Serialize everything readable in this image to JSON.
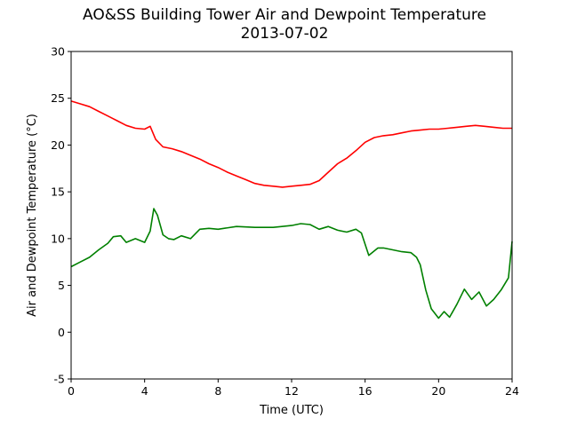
{
  "chart_data": {
    "type": "line",
    "title": "AO&SS Building Tower Air and Dewpoint Temperature",
    "subtitle": "2013-07-02",
    "xlabel": "Time (UTC)",
    "ylabel": "Air and Dewpoint Temperature (°C)",
    "xlim": [
      0,
      24
    ],
    "ylim": [
      -5,
      30
    ],
    "xticks": [
      0,
      4,
      8,
      12,
      16,
      20,
      24
    ],
    "yticks": [
      -5,
      0,
      5,
      10,
      15,
      20,
      25,
      30
    ],
    "grid": false,
    "legend": "none",
    "series": [
      {
        "color": "#ff0000",
        "x": [
          0,
          0.5,
          1,
          1.5,
          2,
          2.5,
          3,
          3.5,
          4,
          4.3,
          4.6,
          5,
          5.5,
          6,
          6.5,
          7,
          7.5,
          8,
          8.5,
          9,
          9.5,
          10,
          10.5,
          11,
          11.5,
          12,
          12.5,
          13,
          13.5,
          14,
          14.5,
          15,
          15.5,
          16,
          16.5,
          17,
          17.5,
          18,
          18.5,
          19,
          19.5,
          20,
          20.5,
          21,
          21.5,
          22,
          22.5,
          23,
          23.5,
          24
        ],
        "y": [
          24.7,
          24.4,
          24.1,
          23.6,
          23.1,
          22.6,
          22.1,
          21.8,
          21.7,
          22.0,
          20.6,
          19.8,
          19.6,
          19.3,
          18.9,
          18.5,
          18.0,
          17.6,
          17.1,
          16.7,
          16.3,
          15.9,
          15.7,
          15.6,
          15.5,
          15.6,
          15.7,
          15.8,
          16.2,
          17.1,
          18.0,
          18.6,
          19.4,
          20.3,
          20.8,
          21.0,
          21.1,
          21.3,
          21.5,
          21.6,
          21.7,
          21.7,
          21.8,
          21.9,
          22.0,
          22.1,
          22.0,
          21.9,
          21.8,
          21.8
        ]
      },
      {
        "color": "#008000",
        "x": [
          0,
          0.5,
          1,
          1.5,
          2,
          2.3,
          2.7,
          3,
          3.5,
          4,
          4.3,
          4.5,
          4.7,
          5,
          5.3,
          5.6,
          6,
          6.5,
          7,
          7.5,
          8,
          9,
          10,
          11,
          12,
          12.5,
          13,
          13.5,
          14,
          14.5,
          15,
          15.5,
          15.8,
          16.2,
          16.7,
          17,
          17.5,
          18,
          18.5,
          18.8,
          19,
          19.3,
          19.6,
          20,
          20.3,
          20.6,
          21,
          21.4,
          21.8,
          22.2,
          22.6,
          23,
          23.4,
          23.8,
          24
        ],
        "y": [
          7.0,
          7.5,
          8.0,
          8.8,
          9.5,
          10.2,
          10.3,
          9.6,
          10.0,
          9.6,
          10.8,
          13.2,
          12.5,
          10.4,
          10.0,
          9.9,
          10.3,
          10.0,
          11.0,
          11.1,
          11.0,
          11.3,
          11.2,
          11.2,
          11.4,
          11.6,
          11.5,
          11.0,
          11.3,
          10.9,
          10.7,
          11.0,
          10.6,
          8.2,
          9.0,
          9.0,
          8.8,
          8.6,
          8.5,
          8.0,
          7.2,
          4.5,
          2.5,
          1.5,
          2.2,
          1.6,
          3.0,
          4.6,
          3.5,
          4.3,
          2.8,
          3.5,
          4.5,
          5.8,
          9.7
        ]
      }
    ]
  }
}
